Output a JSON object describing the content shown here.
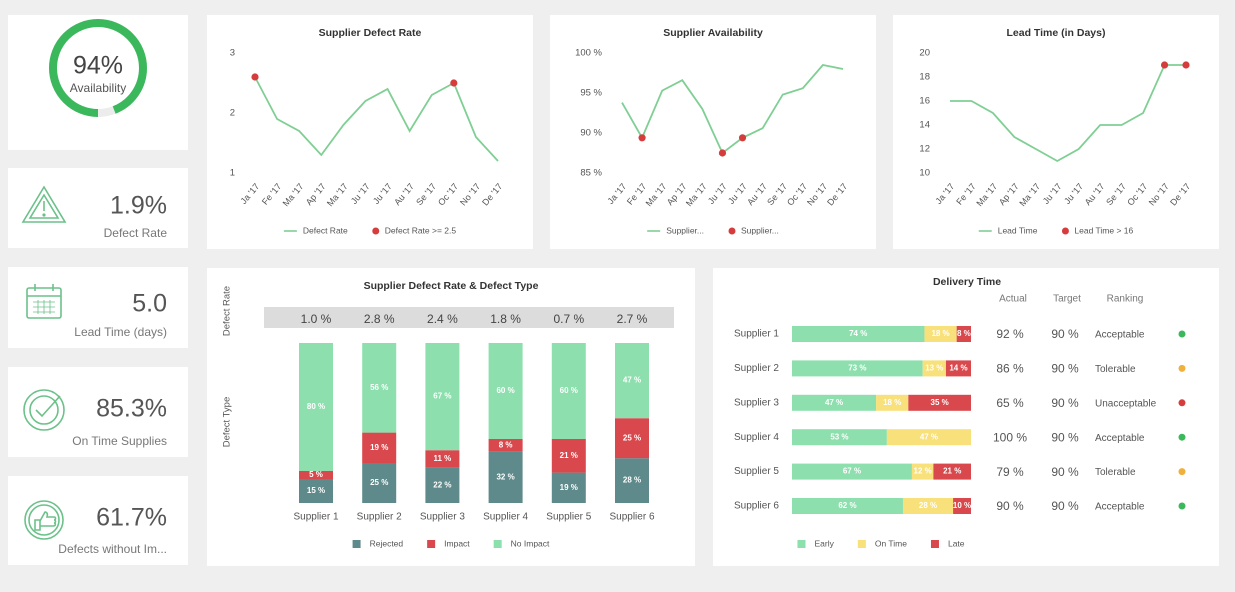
{
  "kpis": [
    {
      "value": 94,
      "value_label": "94%",
      "label": "Availability",
      "range": [
        0,
        100
      ]
    },
    {
      "value_label": "1.9%",
      "label": "Defect Rate"
    },
    {
      "value_label": "5.0",
      "label": "Lead Time (days)"
    },
    {
      "value_label": "85.3%",
      "label": "On Time Supplies"
    },
    {
      "value_label": "61.7%",
      "label": "Defects without Im..."
    }
  ],
  "chart_data": [
    {
      "type": "line",
      "title": "Supplier Defect Rate",
      "categories": [
        "Ja '17",
        "Fe '17",
        "Ma '17",
        "Ap '17",
        "Ma '17",
        "Ju '17",
        "Ju '17",
        "Au '17",
        "Se '17",
        "Oc '17",
        "No '17",
        "De '17"
      ],
      "series": [
        {
          "name": "Defect Rate",
          "color": "#7fcf94",
          "style": "line",
          "values": [
            2.6,
            1.9,
            1.7,
            1.3,
            1.8,
            2.2,
            2.4,
            1.7,
            2.3,
            2.5,
            1.6,
            1.2
          ]
        },
        {
          "name": "Defect Rate >= 2.5",
          "color": "#d63c3c",
          "style": "points",
          "values": [
            2.6,
            null,
            null,
            null,
            null,
            null,
            null,
            null,
            null,
            2.5,
            null,
            null
          ]
        }
      ],
      "ylim": [
        1,
        3
      ],
      "yticks": [
        1,
        2,
        3
      ],
      "grid": false
    },
    {
      "type": "line",
      "title": "Supplier Availability",
      "categories": [
        "Ja '17",
        "Fe '17",
        "Ma '17",
        "Ap '17",
        "Ma '17",
        "Ju '17",
        "Ju '17",
        "Au '17",
        "Se '17",
        "Oc '17",
        "No '17",
        "De '17"
      ],
      "series": [
        {
          "name": "Supplier...",
          "color": "#7fcf94",
          "style": "line",
          "values": [
            93.8,
            89.4,
            95.3,
            96.6,
            93.0,
            87.5,
            89.4,
            90.6,
            94.8,
            95.6,
            98.5,
            98.0
          ]
        },
        {
          "name": "Supplier...",
          "color": "#d63c3c",
          "style": "points",
          "values": [
            null,
            89.4,
            null,
            null,
            null,
            87.5,
            89.4,
            null,
            null,
            null,
            null,
            null
          ]
        }
      ],
      "ylim": [
        85,
        100
      ],
      "yticks": [
        {
          "value": 85,
          "label": "85 %"
        },
        {
          "value": 90,
          "label": "90 %"
        },
        {
          "value": 95,
          "label": "95 %"
        },
        {
          "value": 100,
          "label": "100 %"
        }
      ],
      "grid": false
    },
    {
      "type": "line",
      "title": "Lead Time (in Days)",
      "categories": [
        "Ja '17",
        "Fe '17",
        "Ma '17",
        "Ap '17",
        "Ma '17",
        "Ju '17",
        "Ju '17",
        "Au '17",
        "Se '17",
        "Oc '17",
        "No '17",
        "De '17"
      ],
      "series": [
        {
          "name": "Lead Time",
          "color": "#7fcf94",
          "style": "line",
          "values": [
            16,
            16,
            15,
            13,
            12,
            11,
            12,
            14,
            14,
            15,
            19,
            19
          ]
        },
        {
          "name": "Lead Time > 16",
          "color": "#d63c3c",
          "style": "points",
          "values": [
            null,
            null,
            null,
            null,
            null,
            null,
            null,
            null,
            null,
            null,
            19,
            19
          ]
        }
      ],
      "ylim": [
        10,
        20
      ],
      "yticks": [
        10,
        12,
        14,
        16,
        18,
        20
      ],
      "grid": false
    },
    {
      "type": "stacked-bar",
      "title": "Supplier Defect Rate & Defect Type",
      "row_labels": [
        "Defect Rate",
        "Defect Type"
      ],
      "categories": [
        "Supplier 1",
        "Supplier 2",
        "Supplier 3",
        "Supplier 4",
        "Supplier 5",
        "Supplier 6"
      ],
      "defect_rates": [
        "1.0 %",
        "2.8 %",
        "2.4 %",
        "1.8 %",
        "0.7 %",
        "2.7 %"
      ],
      "series": [
        {
          "name": "Rejected",
          "color": "#5f8a8b",
          "values": [
            15,
            25,
            22,
            32,
            19,
            28
          ],
          "value_labels": [
            "15 %",
            "25 %",
            "22 %",
            "32 %",
            "19 %",
            "28 %"
          ]
        },
        {
          "name": "Impact",
          "color": "#d9484c",
          "values": [
            5,
            19,
            11,
            8,
            21,
            25
          ],
          "value_labels": [
            "5 %",
            "19 %",
            "11 %",
            "8 %",
            "21 %",
            "25 %"
          ]
        },
        {
          "name": "No Impact",
          "color": "#8ddfae",
          "values": [
            80,
            56,
            67,
            60,
            60,
            47
          ],
          "value_labels": [
            "80 %",
            "56 %",
            "67 %",
            "60 %",
            "60 %",
            "47 %"
          ]
        }
      ],
      "ylim": [
        0,
        100
      ]
    },
    {
      "type": "stacked-hbar",
      "title": "Delivery Time",
      "categories": [
        "Supplier 1",
        "Supplier 2",
        "Supplier 3",
        "Supplier 4",
        "Supplier 5",
        "Supplier 6"
      ],
      "series": [
        {
          "name": "Early",
          "color": "#8ddfae",
          "values": [
            74,
            73,
            47,
            53,
            67,
            62
          ],
          "value_labels": [
            "74 %",
            "73 %",
            "47 %",
            "53 %",
            "67 %",
            "62 %"
          ]
        },
        {
          "name": "On Time",
          "color": "#f8e07a",
          "values": [
            18,
            13,
            18,
            47,
            12,
            28
          ],
          "value_labels": [
            "18 %",
            "13 %",
            "18 %",
            "47 %",
            "12 %",
            "28 %"
          ]
        },
        {
          "name": "Late",
          "color": "#d9484c",
          "values": [
            8,
            14,
            35,
            0,
            21,
            10
          ],
          "value_labels": [
            "8 %",
            "14 %",
            "35 %",
            null,
            "21 %",
            "10 %"
          ]
        }
      ],
      "xlim": [
        0,
        100
      ],
      "columns": [
        "Actual",
        "Target",
        "Ranking"
      ],
      "rows": [
        [
          "92 %",
          "90 %",
          "Acceptable"
        ],
        [
          "86 %",
          "90 %",
          "Tolerable"
        ],
        [
          "65 %",
          "90 %",
          "Unacceptable"
        ],
        [
          "100 %",
          "90 %",
          "Acceptable"
        ],
        [
          "79 %",
          "90 %",
          "Tolerable"
        ],
        [
          "90 %",
          "90 %",
          "Acceptable"
        ]
      ],
      "ranking_colors": [
        "#3cb85c",
        "#f0b13c",
        "#d63c3c",
        "#3cb85c",
        "#f0b13c",
        "#3cb85c"
      ]
    }
  ]
}
